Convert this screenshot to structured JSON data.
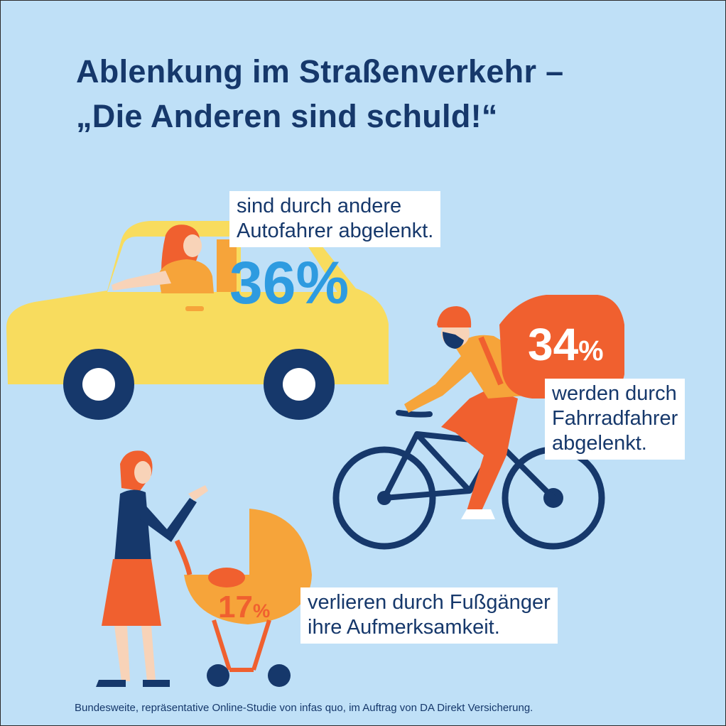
{
  "title": {
    "line1": "Ablenkung im Straßenverkehr –",
    "line2": "„Die Anderen sind schuld!“"
  },
  "stats": {
    "car": {
      "value": "36",
      "unit": "%",
      "label_line1": "sind durch andere",
      "label_line2": "Autofahrer abgelenkt."
    },
    "bike": {
      "value": "34",
      "unit": "%",
      "label_line1": "werden durch",
      "label_line2": "Fahrradfahrer",
      "label_line3": "abgelenkt."
    },
    "pedestrian": {
      "value": "17",
      "unit": "%",
      "label_line1": "verlieren durch Fußgänger",
      "label_line2": "ihre Aufmerksamkeit."
    }
  },
  "footer": "Bundesweite, repräsentative Online-Studie von infas quo, im Auftrag von DA Direkt Versicherung.",
  "colors": {
    "background": "#bfe0f7",
    "navy": "#16386b",
    "car_yellow": "#f8dc5e",
    "stat_blue": "#2e9be0",
    "stat_orange": "#f0602f",
    "skin_orange": "#f6a43a"
  }
}
